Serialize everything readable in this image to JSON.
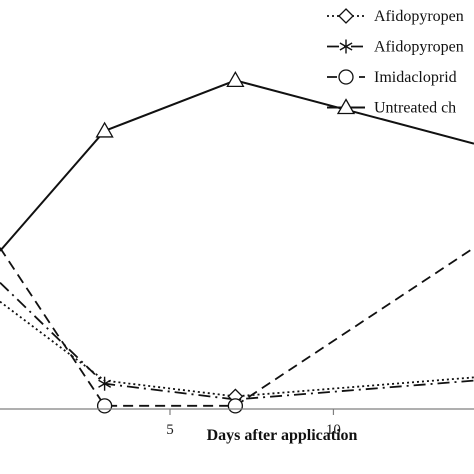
{
  "chart_data": {
    "type": "line",
    "xlabel": "Days after application",
    "ylabel": "",
    "xlim": [
      -0.2,
      14.3
    ],
    "ylim": [
      0,
      100
    ],
    "xticks": [
      5,
      10
    ],
    "legend_position": "top-right",
    "grid": false,
    "series": [
      {
        "name": "Afidopyropen",
        "line_style": "dotted",
        "marker": "diamond",
        "x": [
          -0.2,
          3,
          7,
          14.3
        ],
        "y": [
          34,
          9,
          4,
          10
        ],
        "markers_at": [
          7
        ]
      },
      {
        "name": "Afidopyropen",
        "line_style": "long-dash-dot",
        "marker": "asterisk",
        "x": [
          -0.2,
          3,
          7,
          14.3
        ],
        "y": [
          40,
          8,
          3,
          9
        ],
        "markers_at": [
          3
        ]
      },
      {
        "name": "Imidacloprid",
        "line_style": "dashed",
        "marker": "circle",
        "x": [
          -0.2,
          3,
          7,
          14.3
        ],
        "y": [
          51,
          1,
          1,
          51
        ],
        "markers_at": [
          3,
          7
        ]
      },
      {
        "name": "Untreated ch",
        "line_style": "solid",
        "marker": "triangle",
        "x": [
          -0.2,
          3,
          7,
          14.3
        ],
        "y": [
          50,
          88,
          104,
          84
        ],
        "markers_at": [
          3,
          7
        ]
      }
    ]
  }
}
